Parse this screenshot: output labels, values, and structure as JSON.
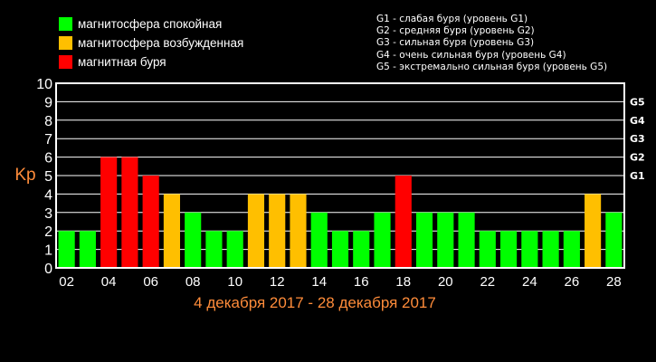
{
  "legend": [
    {
      "color": "#00ff00",
      "label": "магнитосфера спокойная"
    },
    {
      "color": "#ffbf00",
      "label": "магнитосфера возбужденная"
    },
    {
      "color": "#ff0000",
      "label": "магнитная буря"
    }
  ],
  "storm_legend": [
    "G1 - слабая буря (уровень G1)",
    "G2 - средняя буря (уровень G2)",
    "G3 - сильная буря (уровень G3)",
    "G4 - очень сильная буря (уровень G4)",
    "G5 - экстремально сильная буря (уровень G5)"
  ],
  "chart_data": {
    "type": "bar",
    "title": "4 декабря 2017 - 28 декабря 2017",
    "ylabel": "Kp",
    "ylim": [
      0,
      10
    ],
    "yticks": [
      "0",
      "1",
      "2",
      "3",
      "4",
      "5",
      "6",
      "7",
      "8",
      "9",
      "10"
    ],
    "right_labels": [
      {
        "value": 5,
        "label": "G1"
      },
      {
        "value": 6,
        "label": "G2"
      },
      {
        "value": 7,
        "label": "G3"
      },
      {
        "value": 8,
        "label": "G4"
      },
      {
        "value": 9,
        "label": "G5"
      }
    ],
    "categories": [
      "02",
      "03",
      "04",
      "05",
      "06",
      "07",
      "08",
      "09",
      "10",
      "11",
      "12",
      "13",
      "14",
      "15",
      "16",
      "17",
      "18",
      "19",
      "20",
      "21",
      "22",
      "23",
      "24",
      "25",
      "26",
      "27",
      "28"
    ],
    "xtick_labels": [
      "02",
      "04",
      "06",
      "08",
      "10",
      "12",
      "14",
      "16",
      "18",
      "20",
      "22",
      "24",
      "26",
      "28"
    ],
    "values": [
      2,
      2,
      6,
      6,
      5,
      4,
      3,
      2,
      2,
      4,
      4,
      4,
      3,
      2,
      2,
      3,
      5,
      3,
      3,
      3,
      2,
      2,
      2,
      2,
      2,
      4,
      3
    ],
    "colors": [
      "#00ff00",
      "#00ff00",
      "#ff0000",
      "#ff0000",
      "#ff0000",
      "#ffbf00",
      "#00ff00",
      "#00ff00",
      "#00ff00",
      "#ffbf00",
      "#ffbf00",
      "#ffbf00",
      "#00ff00",
      "#00ff00",
      "#00ff00",
      "#00ff00",
      "#ff0000",
      "#00ff00",
      "#00ff00",
      "#00ff00",
      "#00ff00",
      "#00ff00",
      "#00ff00",
      "#00ff00",
      "#00ff00",
      "#ffbf00",
      "#00ff00"
    ],
    "grid": true,
    "title_color": "#ff8c3a"
  }
}
